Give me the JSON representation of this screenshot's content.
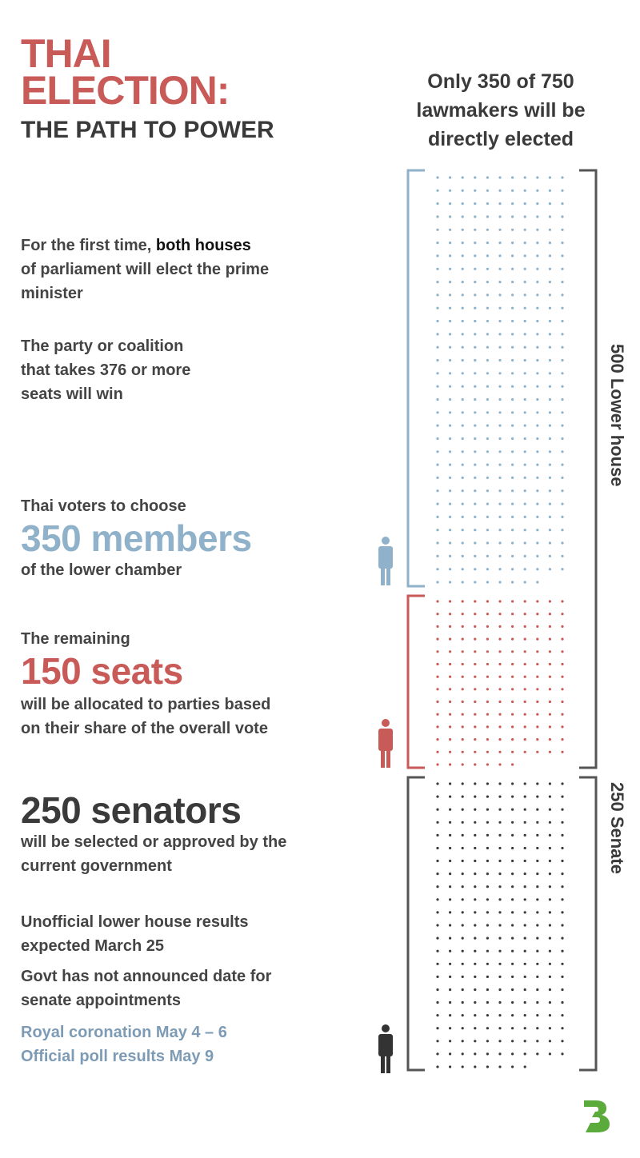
{
  "title": {
    "line1": "THAI",
    "line2": "ELECTION:",
    "subtitle": "THE PATH TO POWER"
  },
  "header_right": {
    "line1": "Only 350 of 750",
    "line2": "lawmakers will be",
    "line3": "directly elected"
  },
  "intro": {
    "p1_prefix": "For the first time, ",
    "p1_bold": "both houses",
    "p1_line2": "of parliament will elect the prime",
    "p1_line3": "minister",
    "p2_line1": "The party or coalition",
    "p2_line2": "that takes 376 or more",
    "p2_line3": "seats will win"
  },
  "lower_members": {
    "pre": "Thai voters to choose",
    "headline": "350 members",
    "post": "of the lower chamber"
  },
  "party_seats": {
    "pre": "The remaining",
    "headline": "150 seats",
    "post_line1": "will be allocated to parties based",
    "post_line2": "on their share of the overall vote"
  },
  "senators": {
    "headline": "250 senators",
    "post_line1": "will be selected or approved by the",
    "post_line2": "current government"
  },
  "notes": {
    "n1_line1": "Unofficial lower house results",
    "n1_line2": "expected March 25",
    "n2_line1": "Govt has not announced date for",
    "n2_line2": "senate appointments",
    "n3": "Royal coronation May 4 – 6",
    "n4": "Official poll results May 9"
  },
  "bracket_labels": {
    "lower": "500  Lower house",
    "senate": "250 Senate"
  },
  "colors": {
    "blue": "#8fb1c9",
    "red": "#c85a58",
    "dark": "#3a3a3a",
    "logo_green": "#5aaa3c"
  },
  "icons": {
    "person": "person-icon",
    "logo": "publisher-logo"
  },
  "chart_data": {
    "type": "dot-grid",
    "groups": [
      {
        "label": "350 members",
        "value": 350
      },
      {
        "label": "150 seats",
        "value": 150
      },
      {
        "label": "250 senators",
        "value": 250
      }
    ]
  }
}
